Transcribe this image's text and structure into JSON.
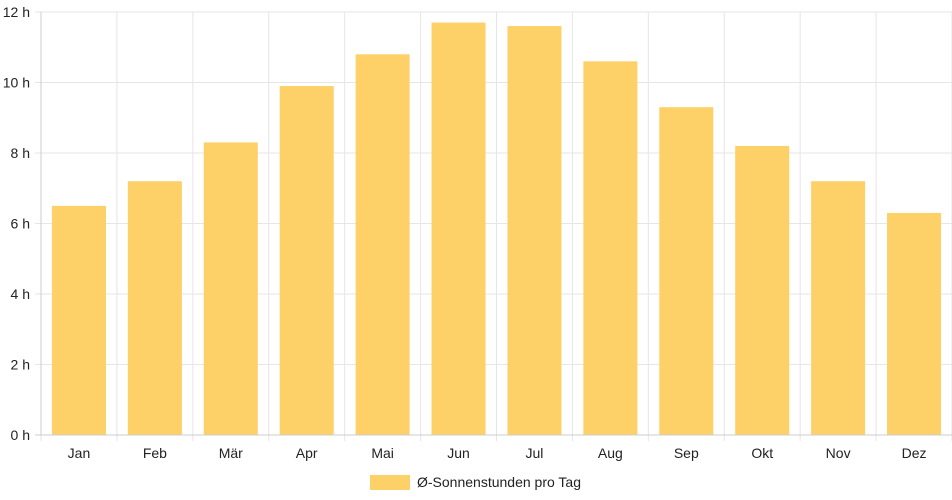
{
  "chart_data": {
    "type": "bar",
    "categories": [
      "Jan",
      "Feb",
      "Mär",
      "Apr",
      "Mai",
      "Jun",
      "Jul",
      "Aug",
      "Sep",
      "Okt",
      "Nov",
      "Dez"
    ],
    "series": [
      {
        "name": "Ø-Sonnenstunden pro Tag",
        "values": [
          6.5,
          7.2,
          8.3,
          9.9,
          10.8,
          11.7,
          11.6,
          10.6,
          9.3,
          8.2,
          7.2,
          6.3
        ],
        "color": "#FDD068"
      }
    ],
    "y_ticks": [
      "0 h",
      "2 h",
      "4 h",
      "6 h",
      "8 h",
      "10 h",
      "12 h"
    ],
    "ylim": [
      0,
      12
    ],
    "grid": true,
    "legend_position": "bottom-center",
    "grid_color": "#e6e6e6",
    "axis_color": "#cccccc"
  }
}
